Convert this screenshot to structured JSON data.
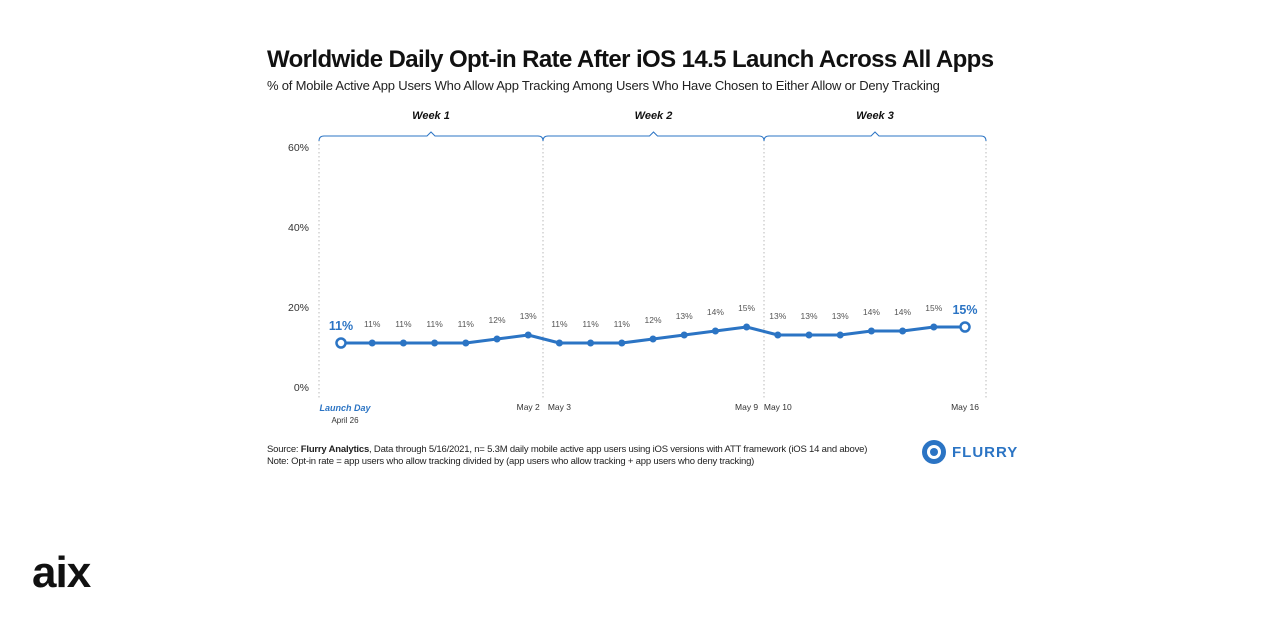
{
  "header": {
    "title": "Worldwide Daily Opt-in Rate After iOS 14.5 Launch Across All Apps",
    "subtitle": "% of Mobile Active App Users Who Allow App Tracking Among Users Who Have Chosen to Either Allow or Deny Tracking"
  },
  "chart_data": {
    "type": "line",
    "title": "Worldwide Daily Opt-in Rate After iOS 14.5 Launch Across All Apps",
    "subtitle": "% of Mobile Active App Users Who Allow App Tracking Among Users Who Have Chosen to Either Allow or Deny Tracking",
    "xlabel": "",
    "ylabel": "",
    "ylim": [
      0,
      60
    ],
    "yticks": [
      "0%",
      "20%",
      "40%",
      "60%"
    ],
    "grid": false,
    "series": [
      {
        "values": [
          11,
          11,
          11,
          11,
          11,
          12,
          13,
          11,
          11,
          11,
          12,
          13,
          14,
          15,
          13,
          13,
          13,
          14,
          14,
          15,
          15
        ],
        "labels": [
          "11%",
          "11%",
          "11%",
          "11%",
          "11%",
          "12%",
          "13%",
          "11%",
          "11%",
          "11%",
          "12%",
          "13%",
          "14%",
          "15%",
          "13%",
          "13%",
          "13%",
          "14%",
          "14%",
          "15%",
          "15%"
        ],
        "color": "#2b74c4"
      }
    ],
    "weeks": [
      "Week 1",
      "Week 2",
      "Week 3"
    ],
    "x_labels": [
      {
        "index": 0,
        "text": "Launch Day",
        "sub": "April 26",
        "highlight": true
      },
      {
        "index": 6,
        "text": "May 2"
      },
      {
        "index": 7,
        "text": "May 3"
      },
      {
        "index": 13,
        "text": "May 9"
      },
      {
        "index": 14,
        "text": "May 10"
      },
      {
        "index": 20,
        "text": "May 16"
      }
    ]
  },
  "footer": {
    "source_prefix": "Source: ",
    "source_name": "Flurry Analytics",
    "source_rest": ", Data through 5/16/2021, n= 5.3M daily mobile active app users using iOS versions with ATT framework (iOS 14 and above)",
    "note": "Note: Opt-in rate = app users who allow tracking divided by (app users who allow tracking + app users who deny tracking)"
  },
  "logos": {
    "flurry": "FLURRY",
    "aix": "aix"
  },
  "colors": {
    "accent": "#2b74c4"
  }
}
